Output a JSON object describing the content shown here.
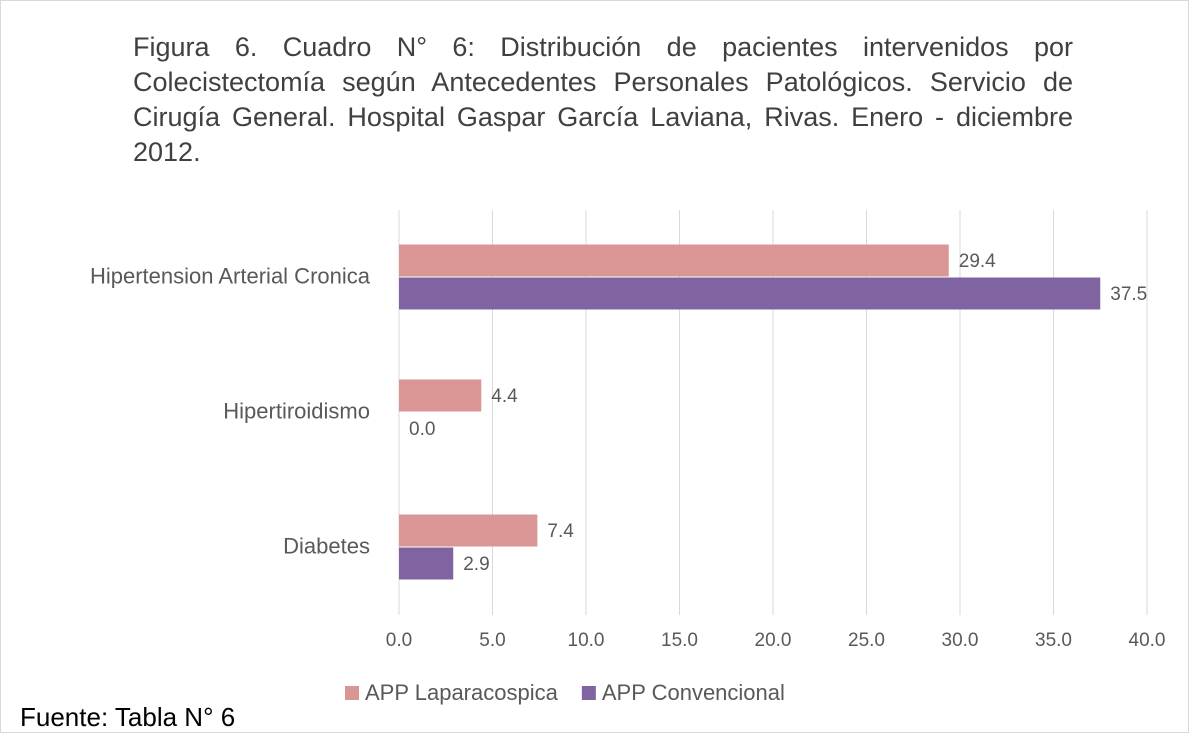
{
  "chart_data": {
    "type": "hbar",
    "title": "Figura 6. Cuadro N° 6: Distribución de pacientes intervenidos por Colecistectomía según Antecedentes Personales Patológicos. Servicio de Cirugía General. Hospital Gaspar García Laviana, Rivas. Enero - diciembre 2012.",
    "source": "Fuente: Tabla N° 6",
    "categories": [
      "Hipertension Arterial Cronica",
      "Hipertiroidismo",
      "Diabetes"
    ],
    "series": [
      {
        "name": "APP Laparacospica",
        "color": "#d99694",
        "values": [
          29.4,
          4.4,
          7.4
        ]
      },
      {
        "name": "APP Convencional",
        "color": "#8064a2",
        "values": [
          37.5,
          0,
          2.9
        ],
        "value_labels": [
          "37.5",
          "0.0",
          "2.9"
        ]
      }
    ],
    "xlim": [
      0,
      40
    ],
    "xticks": [
      {
        "value": 0,
        "label": "0.0"
      },
      {
        "value": 5,
        "label": "5.0"
      },
      {
        "value": 10,
        "label": "10.0"
      },
      {
        "value": 15,
        "label": "15.0"
      },
      {
        "value": 20,
        "label": "20.0"
      },
      {
        "value": 25,
        "label": "25.0"
      },
      {
        "value": 30,
        "label": "30.0"
      },
      {
        "value": 35,
        "label": "35.0"
      },
      {
        "value": 40,
        "label": "40.0"
      }
    ],
    "grid": true,
    "legend": "bottom"
  }
}
